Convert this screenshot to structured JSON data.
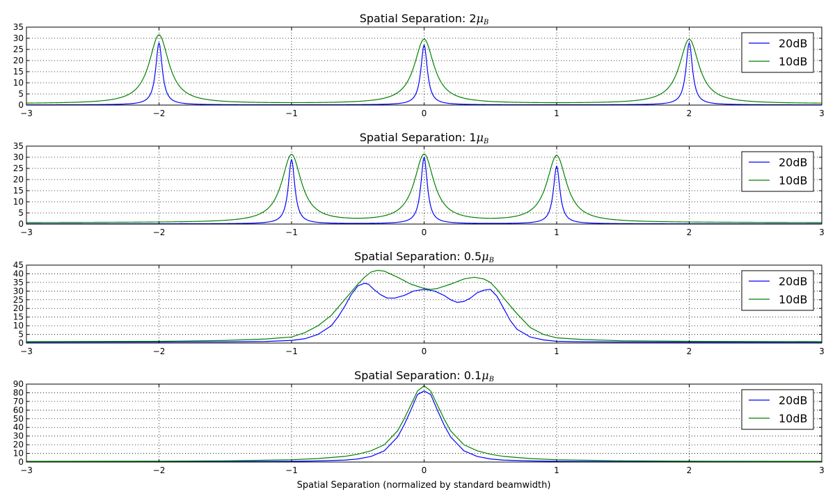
{
  "figure": {
    "xlabel": "Spatial Separation (normalized by standard beamwidth)"
  },
  "colors": {
    "20dB": "#0000ff",
    "10dB": "#008000"
  },
  "chart_data": [
    {
      "type": "line",
      "title": "Spatial Separation: 2",
      "title_math": "μ",
      "title_sub": "B",
      "xlim": [
        -3,
        3
      ],
      "ylim": [
        0,
        35
      ],
      "xticks": [
        -3,
        -2,
        -1,
        0,
        1,
        2,
        3
      ],
      "yticks": [
        0,
        5,
        10,
        15,
        20,
        25,
        30,
        35
      ],
      "grid": true,
      "legend": "upper right",
      "peaks": [
        -2,
        0,
        2
      ],
      "series": [
        {
          "name": "20dB",
          "baseline": 0.1,
          "peak_heights": [
            28,
            27,
            28
          ],
          "width": 0.035,
          "shape": "sharp"
        },
        {
          "name": "10dB",
          "baseline": 0.6,
          "peak_heights": [
            31.5,
            29.5,
            29.5
          ],
          "width": 0.09,
          "shape": "broad"
        }
      ]
    },
    {
      "type": "line",
      "title": "Spatial Separation: 1",
      "title_math": "μ",
      "title_sub": "B",
      "xlim": [
        -3,
        3
      ],
      "ylim": [
        0,
        35
      ],
      "xticks": [
        -3,
        -2,
        -1,
        0,
        1,
        2,
        3
      ],
      "yticks": [
        0,
        5,
        10,
        15,
        20,
        25,
        30,
        35
      ],
      "grid": true,
      "legend": "upper right",
      "peaks": [
        -1,
        0,
        1
      ],
      "series": [
        {
          "name": "20dB",
          "baseline": 0.1,
          "peak_heights": [
            29,
            30,
            26
          ],
          "width": 0.035,
          "shape": "sharp"
        },
        {
          "name": "10dB",
          "baseline": 0.6,
          "peak_heights": [
            31,
            31,
            30.5
          ],
          "width": 0.09,
          "shape": "broad"
        }
      ]
    },
    {
      "type": "line",
      "title": "Spatial Separation: 0.5",
      "title_math": "μ",
      "title_sub": "B",
      "xlim": [
        -3,
        3
      ],
      "ylim": [
        0,
        45
      ],
      "xticks": [
        -3,
        -2,
        -1,
        0,
        1,
        2,
        3
      ],
      "yticks": [
        0,
        5,
        10,
        15,
        20,
        25,
        30,
        35,
        40,
        45
      ],
      "grid": true,
      "legend": "upper right",
      "series": [
        {
          "name": "20dB",
          "x": [
            -3,
            -2,
            -1.5,
            -1.2,
            -1.0,
            -0.9,
            -0.8,
            -0.7,
            -0.65,
            -0.6,
            -0.55,
            -0.5,
            -0.45,
            -0.42,
            -0.38,
            -0.33,
            -0.28,
            -0.22,
            -0.15,
            -0.08,
            0,
            0.08,
            0.15,
            0.2,
            0.25,
            0.3,
            0.35,
            0.4,
            0.45,
            0.5,
            0.55,
            0.6,
            0.65,
            0.7,
            0.8,
            0.9,
            1.0,
            1.2,
            1.5,
            2,
            3
          ],
          "y": [
            0.5,
            0.6,
            0.7,
            0.9,
            1.5,
            2.5,
            5,
            10,
            15,
            21,
            28,
            33,
            34.5,
            34,
            31,
            28,
            26,
            26,
            27.5,
            30,
            31,
            30,
            27.5,
            25,
            23.5,
            24,
            26,
            29,
            30.5,
            31,
            27,
            20,
            13,
            8,
            3.5,
            1.8,
            1.0,
            0.7,
            0.6,
            0.5,
            0.5
          ]
        },
        {
          "name": "10dB",
          "x": [
            -3,
            -2,
            -1.5,
            -1.2,
            -1.0,
            -0.9,
            -0.8,
            -0.7,
            -0.6,
            -0.5,
            -0.45,
            -0.4,
            -0.35,
            -0.3,
            -0.2,
            -0.1,
            0,
            0.05,
            0.1,
            0.2,
            0.3,
            0.38,
            0.45,
            0.5,
            0.55,
            0.6,
            0.7,
            0.8,
            0.9,
            1.0,
            1.2,
            1.5,
            2,
            3
          ],
          "y": [
            0.8,
            1.0,
            1.5,
            2.3,
            3.5,
            6,
            10,
            16,
            25,
            34,
            38,
            41,
            42,
            41.5,
            38,
            34,
            31.5,
            31,
            31.5,
            34,
            37,
            38,
            37,
            35,
            31,
            26,
            17,
            9,
            5,
            3,
            2,
            1.3,
            1.0,
            0.8
          ]
        }
      ]
    },
    {
      "type": "line",
      "title": "Spatial Separation: 0.1",
      "title_math": "μ",
      "title_sub": "B",
      "xlim": [
        -3,
        3
      ],
      "ylim": [
        0,
        90
      ],
      "xticks": [
        -3,
        -2,
        -1,
        0,
        1,
        2,
        3
      ],
      "yticks": [
        0,
        10,
        20,
        30,
        40,
        50,
        60,
        70,
        80,
        90
      ],
      "grid": true,
      "legend": "upper right",
      "series": [
        {
          "name": "20dB",
          "x": [
            -3,
            -2,
            -1.5,
            -1,
            -0.8,
            -0.6,
            -0.5,
            -0.4,
            -0.3,
            -0.2,
            -0.15,
            -0.1,
            -0.05,
            0,
            0.05,
            0.1,
            0.15,
            0.2,
            0.3,
            0.4,
            0.5,
            0.6,
            0.8,
            1,
            1.5,
            2,
            3
          ],
          "y": [
            0.3,
            0.4,
            0.5,
            0.8,
            1.3,
            2.2,
            3.5,
            6.5,
            13,
            29,
            43,
            60,
            78,
            82,
            78,
            60,
            43,
            29,
            13,
            6.5,
            3.5,
            2.2,
            1.3,
            0.8,
            0.5,
            0.4,
            0.3
          ]
        },
        {
          "name": "10dB",
          "x": [
            -3,
            -2,
            -1.5,
            -1,
            -0.8,
            -0.6,
            -0.5,
            -0.4,
            -0.3,
            -0.2,
            -0.15,
            -0.1,
            -0.05,
            0,
            0.05,
            0.1,
            0.15,
            0.2,
            0.3,
            0.4,
            0.5,
            0.6,
            0.8,
            1,
            1.5,
            2,
            3
          ],
          "y": [
            0.8,
            1.0,
            1.4,
            2.6,
            4,
            6.5,
            9,
            13,
            20,
            36,
            50,
            66,
            82,
            88,
            82,
            66,
            50,
            36,
            20,
            13,
            9,
            6.5,
            4,
            2.6,
            1.4,
            1.0,
            0.8
          ]
        }
      ]
    }
  ]
}
